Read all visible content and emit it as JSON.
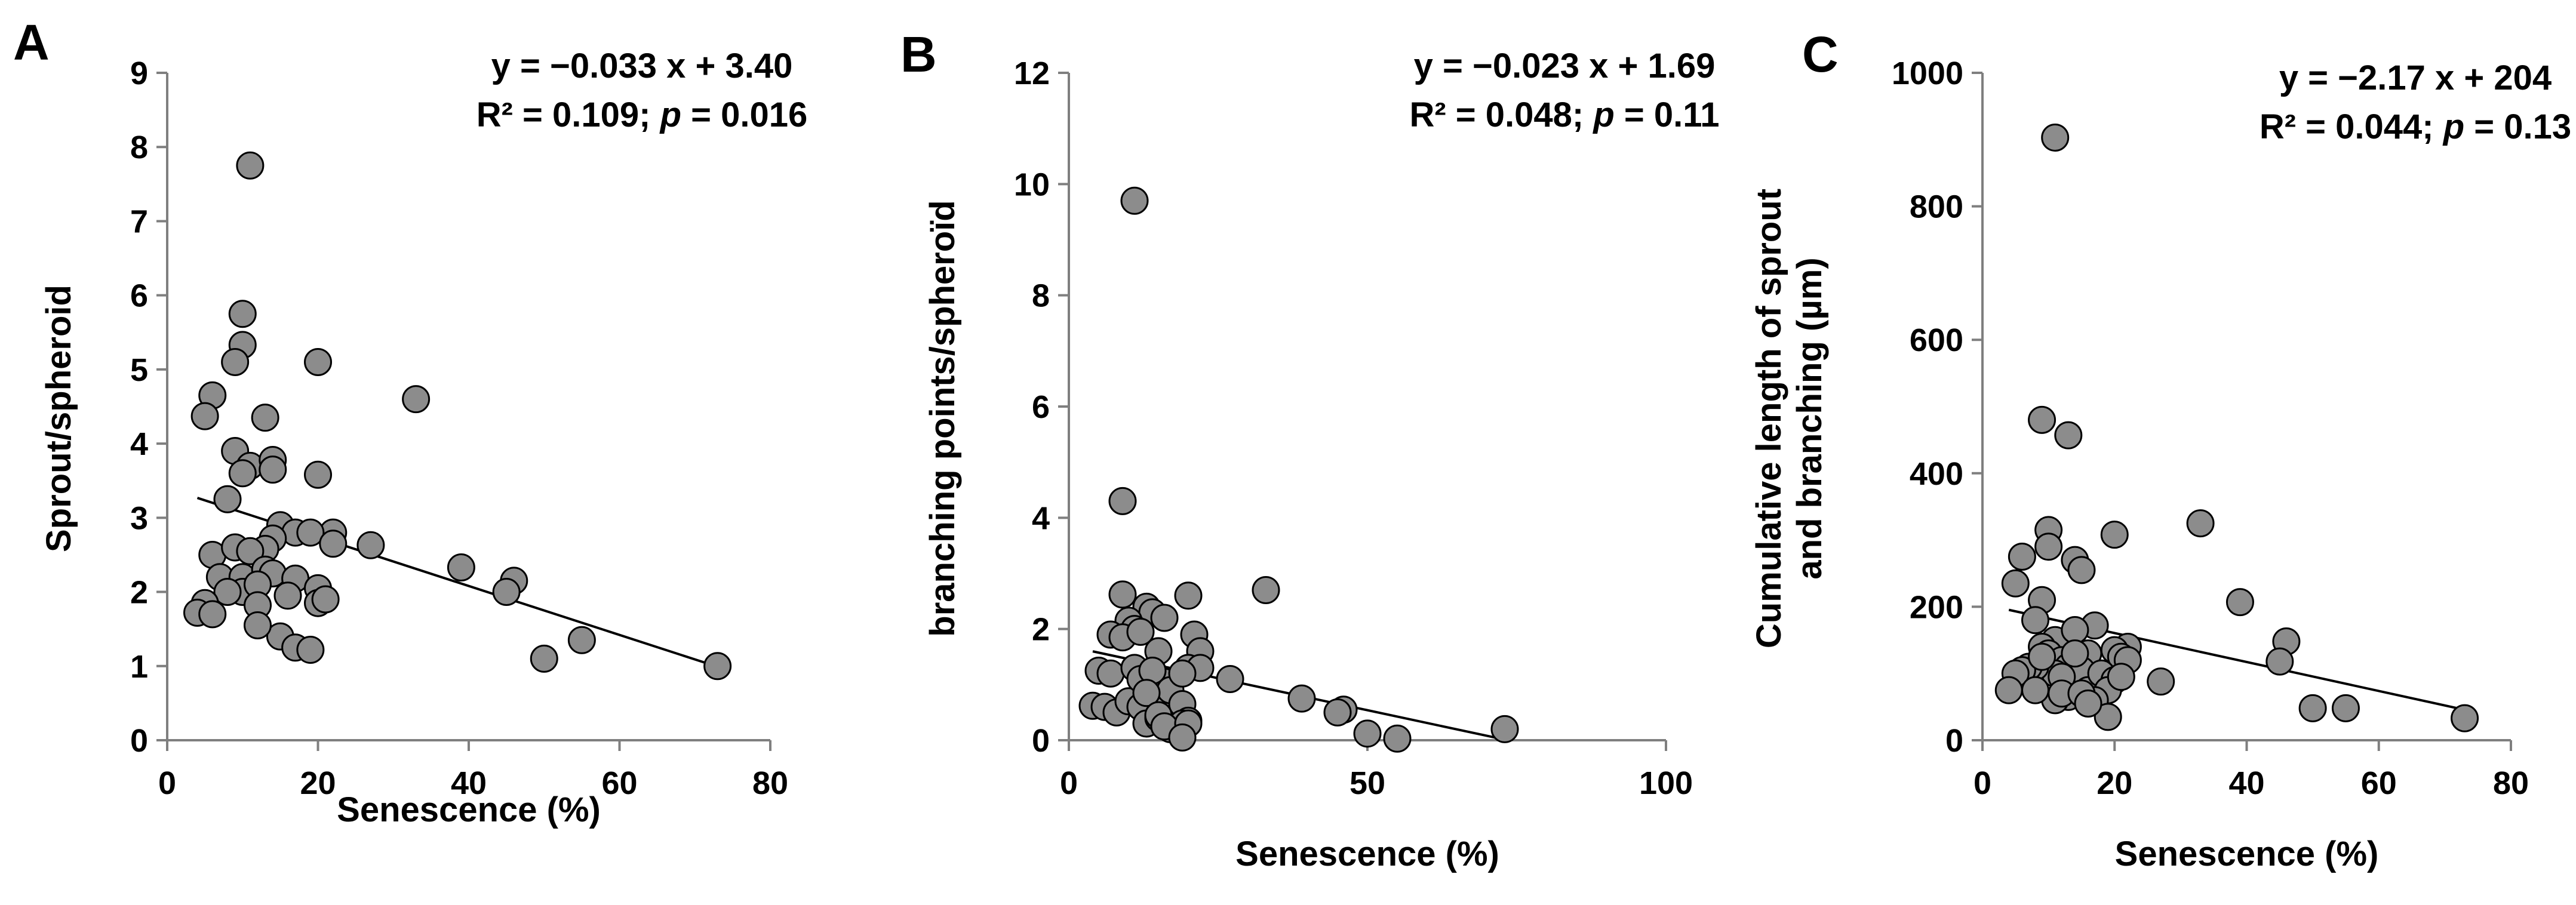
{
  "chart_data": [
    {
      "type": "scatter",
      "panel_label": "A",
      "xlabel": "Senescence (%)",
      "ylabel": "Sprout/spheroid",
      "xlim": [
        0,
        80
      ],
      "ylim": [
        0,
        9
      ],
      "xticks": [
        0,
        20,
        40,
        60,
        80
      ],
      "yticks": [
        0,
        1,
        2,
        3,
        4,
        5,
        6,
        7,
        8,
        9
      ],
      "equation": "y = −0.033 x + 3.40",
      "stats_prefix": "R² = 0.109; ",
      "stats_p": "p",
      "stats_suffix": " = 0.016",
      "trendline": {
        "slope": -0.033,
        "intercept": 3.4,
        "x_start": 4,
        "x_end": 73
      },
      "x": [
        11,
        10,
        10,
        9,
        20,
        6,
        5,
        33,
        13,
        9,
        11,
        14,
        10,
        14,
        20,
        8,
        22,
        15,
        17,
        19,
        22,
        27,
        14,
        6,
        9,
        13,
        11,
        7,
        10,
        39,
        46,
        45,
        13,
        14,
        17,
        10,
        12,
        8,
        5,
        4,
        6,
        12,
        15,
        20,
        20,
        21,
        12,
        16,
        17,
        19,
        55,
        50,
        73
      ],
      "y": [
        7.75,
        5.75,
        5.33,
        5.1,
        5.1,
        4.65,
        4.37,
        4.6,
        4.35,
        3.9,
        3.7,
        3.78,
        3.6,
        3.65,
        3.58,
        3.25,
        2.8,
        2.9,
        2.8,
        2.8,
        2.65,
        2.63,
        2.72,
        2.5,
        2.6,
        2.58,
        2.55,
        2.2,
        2.2,
        2.33,
        2.15,
        2.0,
        2.3,
        2.25,
        2.18,
        2.0,
        2.1,
        2.0,
        1.85,
        1.72,
        1.7,
        1.82,
        1.4,
        2.05,
        1.85,
        1.9,
        1.55,
        1.95,
        1.25,
        1.22,
        1.35,
        1.1,
        1.0
      ]
    },
    {
      "type": "scatter",
      "panel_label": "B",
      "xlabel": "Senescence (%)",
      "ylabel": "branching points/spheroïd",
      "xlim": [
        0,
        100
      ],
      "ylim": [
        0,
        12
      ],
      "xticks": [
        0,
        50,
        100
      ],
      "yticks": [
        0,
        2,
        4,
        6,
        8,
        10,
        12
      ],
      "equation": "y = −0.023 x + 1.69",
      "stats_prefix": "R² = 0.048; ",
      "stats_p": "p",
      "stats_suffix": " = 0.11",
      "trendline": {
        "slope": -0.023,
        "intercept": 1.69,
        "x_start": 4,
        "x_end": 73
      },
      "x": [
        11,
        9,
        9,
        33,
        20,
        13,
        21,
        14,
        16,
        10,
        11,
        7,
        9,
        12,
        15,
        22,
        5,
        27,
        20,
        22,
        16,
        39,
        46,
        45,
        4,
        6,
        7,
        8,
        10,
        11,
        12,
        13,
        14,
        15,
        16,
        17,
        18,
        19,
        20,
        19,
        12,
        14,
        13,
        17,
        15,
        19,
        16,
        20,
        50,
        55,
        73,
        19
      ],
      "y": [
        9.7,
        4.3,
        2.62,
        2.7,
        2.6,
        2.4,
        1.9,
        2.3,
        2.2,
        2.15,
        2.0,
        1.9,
        1.85,
        1.95,
        1.6,
        1.6,
        1.25,
        1.1,
        1.3,
        1.3,
        1.05,
        0.75,
        0.55,
        0.5,
        0.62,
        0.6,
        1.2,
        0.5,
        0.7,
        1.3,
        0.6,
        0.3,
        0.9,
        0.4,
        0.55,
        0.9,
        0.3,
        0.65,
        0.35,
        1.2,
        1.1,
        1.25,
        0.85,
        0.2,
        0.45,
        0.3,
        0.25,
        0.3,
        0.12,
        0.03,
        0.2,
        0.05
      ]
    },
    {
      "type": "scatter",
      "panel_label": "C",
      "xlabel": "Senescence (%)",
      "ylabel_lines": [
        "Cumulative length of sprout",
        "and branching (µm)"
      ],
      "xlim": [
        0,
        80
      ],
      "ylim": [
        0,
        1000
      ],
      "xticks": [
        0,
        20,
        40,
        60,
        80
      ],
      "yticks": [
        0,
        200,
        400,
        600,
        800,
        1000
      ],
      "equation": "y = −2.17 x + 204",
      "stats_prefix": "R² = 0.044; ",
      "stats_p": "p",
      "stats_suffix": " = 0.13",
      "trendline": {
        "slope": -2.17,
        "intercept": 204,
        "x_start": 4,
        "x_end": 73
      },
      "x": [
        11,
        9,
        13,
        33,
        10,
        20,
        14,
        6,
        10,
        15,
        5,
        9,
        39,
        8,
        17,
        46,
        11,
        14,
        9,
        22,
        20,
        16,
        10,
        21,
        45,
        12,
        13,
        15,
        11,
        8,
        7,
        6,
        5,
        4,
        9,
        12,
        14,
        16,
        18,
        20,
        22,
        27,
        19,
        17,
        13,
        11,
        12,
        15,
        21,
        50,
        55,
        73,
        19,
        8,
        16
      ],
      "y": [
        903,
        480,
        457,
        325,
        315,
        308,
        270,
        275,
        290,
        255,
        235,
        210,
        207,
        180,
        172,
        148,
        150,
        165,
        140,
        140,
        135,
        130,
        130,
        125,
        118,
        120,
        110,
        105,
        100,
        110,
        110,
        105,
        100,
        75,
        125,
        95,
        130,
        75,
        100,
        90,
        120,
        88,
        75,
        60,
        65,
        60,
        70,
        70,
        95,
        48,
        48,
        33,
        35,
        75,
        55
      ]
    }
  ]
}
